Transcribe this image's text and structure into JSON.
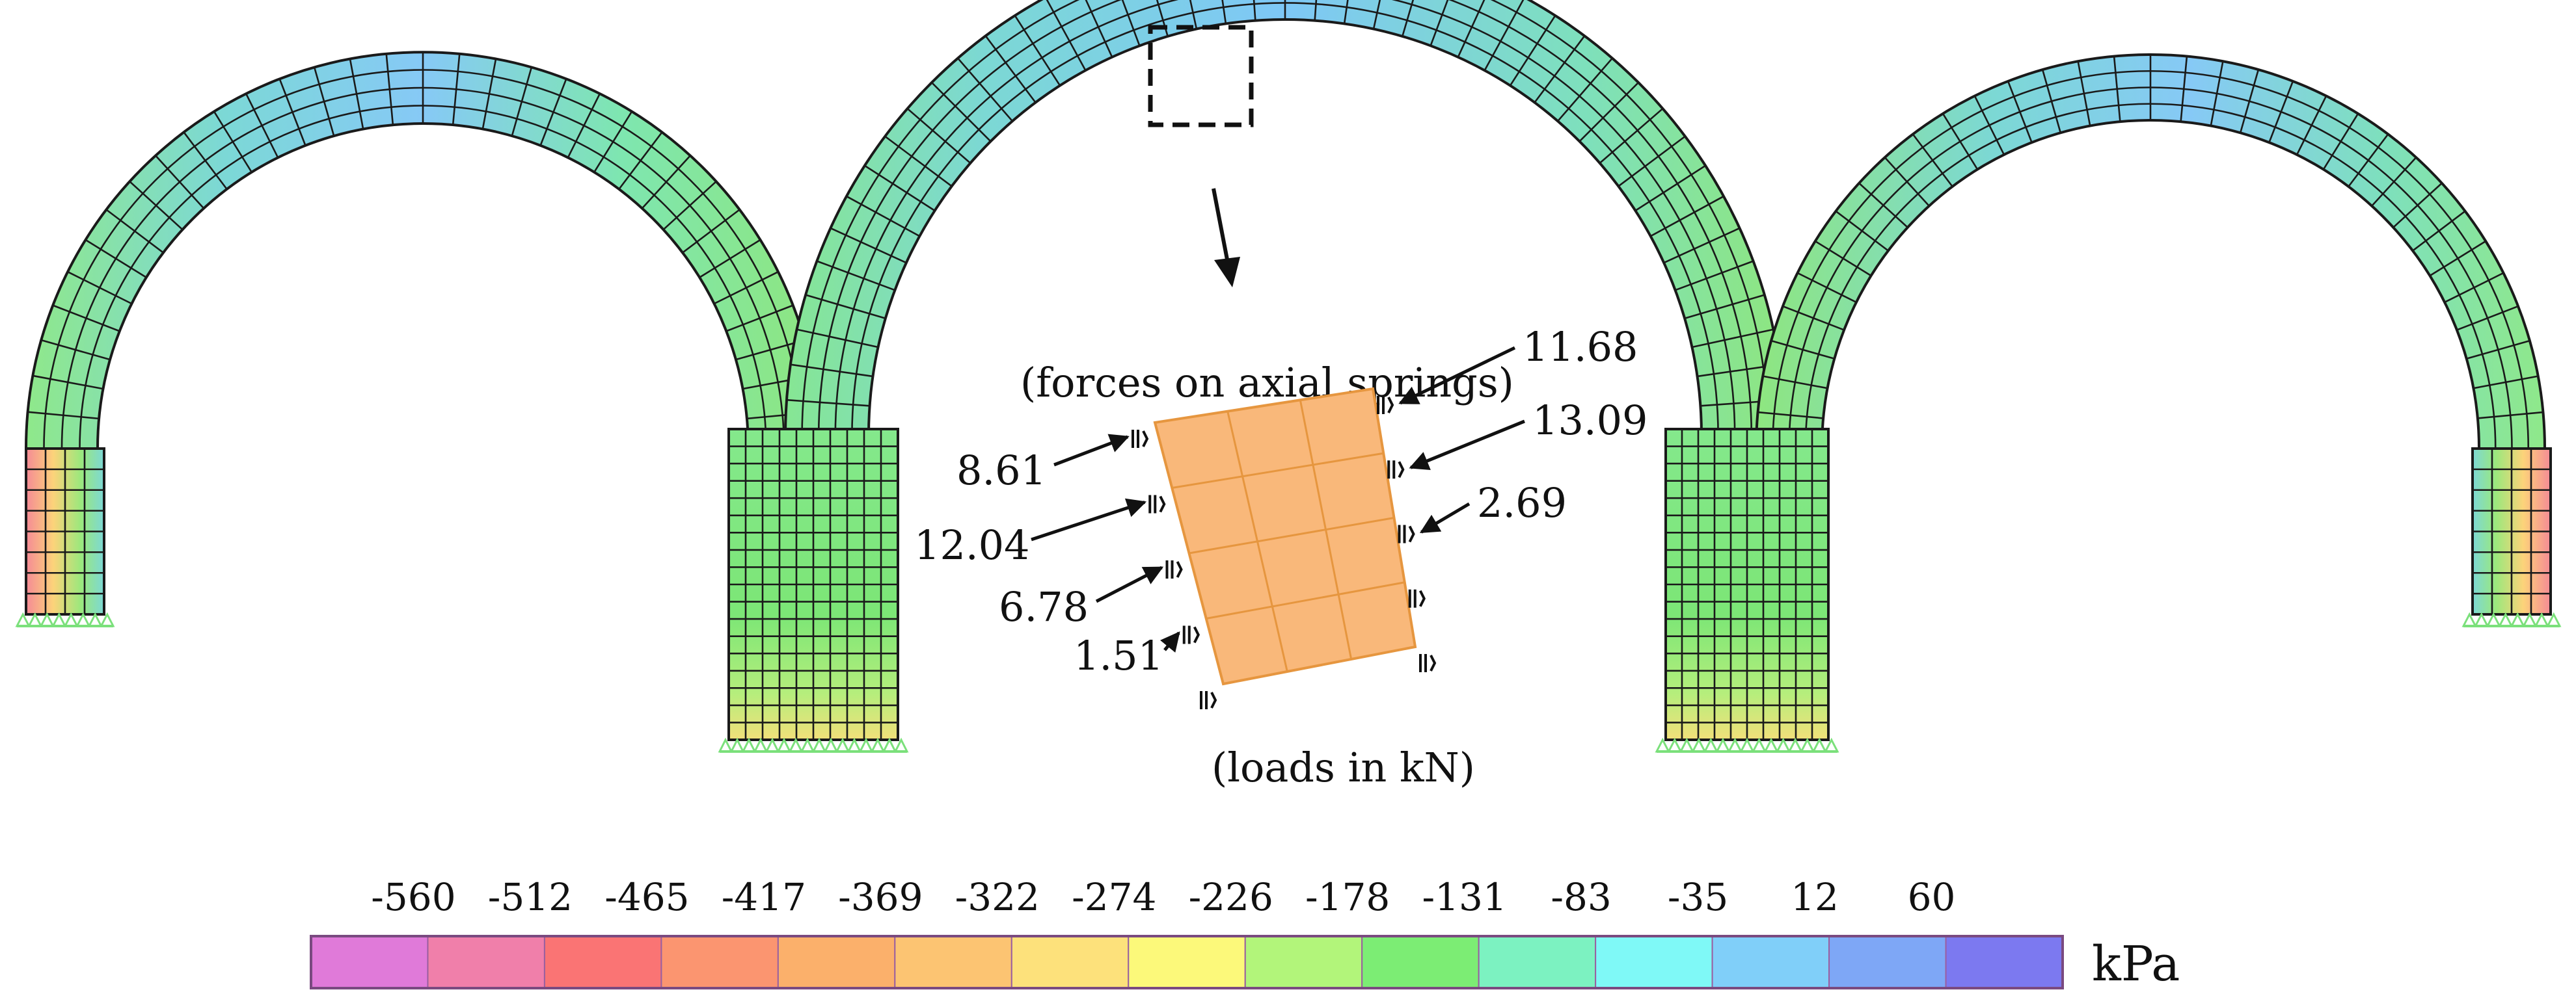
{
  "annotations": {
    "forces_caption": "(forces on axial springs)",
    "loads_caption": "(loads in kN)"
  },
  "spring_forces": {
    "left": [
      "8.61",
      "12.04",
      "6.78",
      "1.51"
    ],
    "right": [
      "11.68",
      "13.09",
      "2.69"
    ]
  },
  "legend": {
    "unit": "kPa",
    "ticks": [
      "-560",
      "-512",
      "-465",
      "-417",
      "-369",
      "-322",
      "-274",
      "-226",
      "-178",
      "-131",
      "-83",
      "-35",
      "12",
      "60"
    ],
    "colors": [
      "#e07ad9",
      "#f07faa",
      "#fa7474",
      "#fb9570",
      "#fbb06b",
      "#fcc472",
      "#fde17b",
      "#fcf97a",
      "#b2f57a",
      "#7ced74",
      "#7cf2c1",
      "#7ff9f7",
      "#80cff9",
      "#7ea7f6",
      "#7c79f0"
    ]
  },
  "colors": {
    "mesh_line": "#1a1a1a",
    "stress_cool": "#7ec7f7",
    "stress_neutral": "#7cf0c8",
    "stress_mid": "#8ee87a",
    "stress_warm": "#fbb06b",
    "detail_fill": "#f9b87a",
    "support": "#7be07b"
  }
}
